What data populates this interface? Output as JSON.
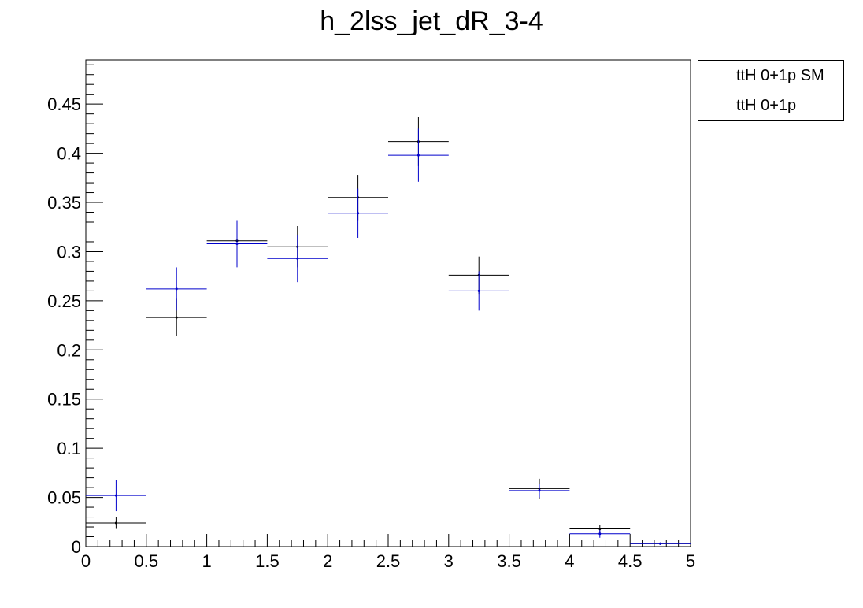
{
  "page_title": "h_2lss_jet_dR_3-4",
  "legend": {
    "items": [
      {
        "label": "ttH 0+1p SM",
        "color": "#000000"
      },
      {
        "label": "ttH 0+1p",
        "color": "#0000cc"
      }
    ]
  },
  "chart_data": {
    "type": "scatter",
    "title": "h_2lss_jet_dR_3-4",
    "xlabel": "",
    "ylabel": "",
    "xlim": [
      0,
      5
    ],
    "ylim": [
      0,
      0.495
    ],
    "x_ticks": [
      "0",
      "0.5",
      "1",
      "1.5",
      "2",
      "2.5",
      "3",
      "3.5",
      "4",
      "4.5",
      "5"
    ],
    "y_ticks": [
      "0",
      "0.05",
      "0.1",
      "0.15",
      "0.2",
      "0.25",
      "0.3",
      "0.35",
      "0.4",
      "0.45"
    ],
    "bin_edges": [
      0,
      0.5,
      1,
      1.5,
      2,
      2.5,
      3,
      3.5,
      4,
      4.5,
      5
    ],
    "series": [
      {
        "name": "ttH 0+1p SM",
        "color": "#000000",
        "values": [
          0.024,
          0.233,
          0.311,
          0.305,
          0.355,
          0.412,
          0.276,
          0.059,
          0.018,
          0.003
        ],
        "errors": [
          0.006,
          0.019,
          0.02,
          0.021,
          0.023,
          0.025,
          0.019,
          0.01,
          0.004,
          0.001
        ]
      },
      {
        "name": "ttH 0+1p",
        "color": "#0000cc",
        "values": [
          0.052,
          0.262,
          0.308,
          0.293,
          0.339,
          0.398,
          0.26,
          0.057,
          0.013,
          0.003
        ],
        "errors": [
          0.016,
          0.022,
          0.024,
          0.024,
          0.025,
          0.027,
          0.02,
          0.007,
          0.004,
          0.001
        ]
      }
    ],
    "grid": false,
    "legend_position": "top-right-outside"
  }
}
